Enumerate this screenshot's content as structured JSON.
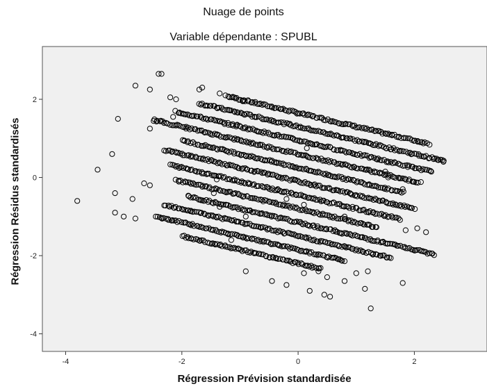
{
  "chart_data": {
    "type": "scatter",
    "title": "Nuage de points",
    "subtitle": "Variable dépendante : SPUBL",
    "xlabel": "Régression Prévision standardisée",
    "ylabel": "Régression Résidus standardisés",
    "xlim": [
      -4.4,
      3.25
    ],
    "ylim": [
      -4.45,
      3.35
    ],
    "xticks": [
      -4,
      -2,
      0,
      2
    ],
    "xtick_labels": [
      "-4",
      "-2",
      "0",
      "2"
    ],
    "yticks": [
      -4,
      -2,
      0,
      2
    ],
    "ytick_labels": [
      "-4",
      "-2",
      "0",
      "2"
    ],
    "grid": false,
    "plot_background": "#f0f0f0",
    "marker": "hollow-circle",
    "marker_color": "#000000",
    "bands": [
      {
        "x_start": -1.2,
        "x_end": 2.25,
        "y_at_x0": 1.65
      },
      {
        "x_start": -1.7,
        "x_end": 2.5,
        "y_at_x0": 1.3
      },
      {
        "x_start": -2.1,
        "x_end": 2.3,
        "y_at_x0": 0.95
      },
      {
        "x_start": -2.5,
        "x_end": 2.1,
        "y_at_x0": 0.6
      },
      {
        "x_start": -2.0,
        "x_end": 1.8,
        "y_at_x0": 0.25
      },
      {
        "x_start": -2.3,
        "x_end": 2.0,
        "y_at_x0": -0.1
      },
      {
        "x_start": -2.2,
        "x_end": 1.75,
        "y_at_x0": -0.45
      },
      {
        "x_start": -2.1,
        "x_end": 1.35,
        "y_at_x0": -0.8
      },
      {
        "x_start": -1.9,
        "x_end": 2.35,
        "y_at_x0": -1.15
      },
      {
        "x_start": -2.3,
        "x_end": 1.6,
        "y_at_x0": -1.5
      },
      {
        "x_start": -2.45,
        "x_end": 0.8,
        "y_at_x0": -1.85
      },
      {
        "x_start": -2.0,
        "x_end": 0.4,
        "y_at_x0": -2.2
      }
    ],
    "band_slope": -0.35,
    "scattered_points": [
      {
        "x": -3.8,
        "y": -0.6
      },
      {
        "x": -3.45,
        "y": 0.2
      },
      {
        "x": -3.2,
        "y": 0.6
      },
      {
        "x": -3.15,
        "y": -0.4
      },
      {
        "x": -3.15,
        "y": -0.9
      },
      {
        "x": -3.1,
        "y": 1.5
      },
      {
        "x": -3.0,
        "y": -1.0
      },
      {
        "x": -2.85,
        "y": -0.55
      },
      {
        "x": -2.8,
        "y": 2.35
      },
      {
        "x": -2.8,
        "y": -1.05
      },
      {
        "x": -2.65,
        "y": -0.15
      },
      {
        "x": -2.55,
        "y": 1.25
      },
      {
        "x": -2.55,
        "y": 2.25
      },
      {
        "x": -2.4,
        "y": 2.65
      },
      {
        "x": -2.35,
        "y": 2.65
      },
      {
        "x": -2.55,
        "y": -0.2
      },
      {
        "x": -2.2,
        "y": 2.05
      },
      {
        "x": -2.1,
        "y": 2.0
      },
      {
        "x": -2.15,
        "y": 1.55
      },
      {
        "x": -1.65,
        "y": 2.3
      },
      {
        "x": -1.7,
        "y": 2.25
      },
      {
        "x": -1.35,
        "y": 2.15
      },
      {
        "x": -1.25,
        "y": 2.1
      },
      {
        "x": -1.1,
        "y": 2.05
      },
      {
        "x": -0.95,
        "y": 1.95
      },
      {
        "x": -1.05,
        "y": 1.35
      },
      {
        "x": 0.15,
        "y": 0.75
      },
      {
        "x": -1.4,
        "y": -0.05
      },
      {
        "x": -1.45,
        "y": -0.4
      },
      {
        "x": -1.35,
        "y": -0.75
      },
      {
        "x": -1.15,
        "y": -1.6
      },
      {
        "x": -0.9,
        "y": -1.0
      },
      {
        "x": -0.35,
        "y": -0.3
      },
      {
        "x": 0.1,
        "y": -0.7
      },
      {
        "x": -0.2,
        "y": -0.55
      },
      {
        "x": 0.8,
        "y": -1.0
      },
      {
        "x": -0.9,
        "y": -2.4
      },
      {
        "x": -0.45,
        "y": -2.65
      },
      {
        "x": -0.2,
        "y": -2.75
      },
      {
        "x": 0.1,
        "y": -2.45
      },
      {
        "x": 0.35,
        "y": -2.4
      },
      {
        "x": 0.5,
        "y": -2.55
      },
      {
        "x": 0.2,
        "y": -2.9
      },
      {
        "x": 0.45,
        "y": -3.0
      },
      {
        "x": 0.55,
        "y": -3.05
      },
      {
        "x": 0.8,
        "y": -2.65
      },
      {
        "x": 1.0,
        "y": -2.45
      },
      {
        "x": 1.15,
        "y": -2.85
      },
      {
        "x": 1.2,
        "y": -2.4
      },
      {
        "x": 1.25,
        "y": -3.35
      },
      {
        "x": 1.8,
        "y": -2.7
      },
      {
        "x": 1.45,
        "y": -1.65
      },
      {
        "x": 1.55,
        "y": 0.0
      },
      {
        "x": 1.5,
        "y": 0.15
      },
      {
        "x": 1.8,
        "y": -0.3
      },
      {
        "x": 2.4,
        "y": 0.45
      },
      {
        "x": 2.5,
        "y": 0.4
      },
      {
        "x": 1.85,
        "y": -1.35
      },
      {
        "x": 2.05,
        "y": -1.3
      },
      {
        "x": 2.2,
        "y": -1.4
      }
    ]
  }
}
